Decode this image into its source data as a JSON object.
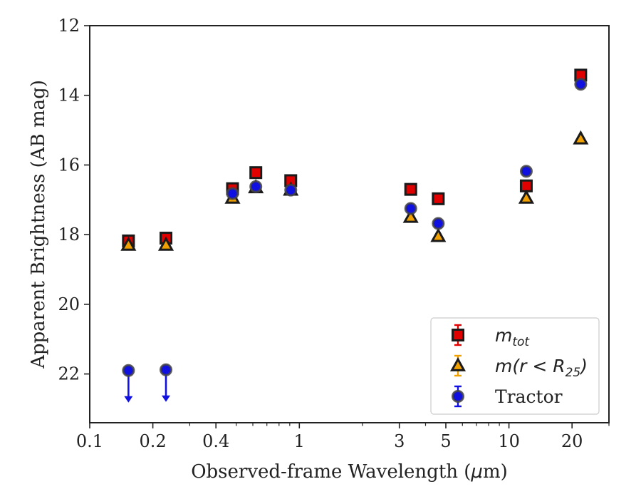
{
  "chart_data": {
    "type": "scatter",
    "xlabel_prefix": "Observed-frame Wavelength (",
    "xlabel_unit_mu": "μ",
    "xlabel_unit_rest": "m)",
    "ylabel": "Apparent Brightness (AB mag)",
    "x_scale": "log",
    "xlim": [
      0.1,
      30
    ],
    "ylim": [
      23.4,
      12
    ],
    "y_inverted": true,
    "grid": false,
    "legend_position": "lower-right",
    "x_ticks": [
      {
        "value": 0.1,
        "label": "0.1"
      },
      {
        "value": 0.2,
        "label": "0.2"
      },
      {
        "value": 0.4,
        "label": "0.4"
      },
      {
        "value": 1,
        "label": "1"
      },
      {
        "value": 3,
        "label": "3"
      },
      {
        "value": 5,
        "label": "5"
      },
      {
        "value": 10,
        "label": "10"
      },
      {
        "value": 20,
        "label": "20"
      }
    ],
    "y_ticks": [
      {
        "value": 12,
        "label": "12"
      },
      {
        "value": 14,
        "label": "14"
      },
      {
        "value": 16,
        "label": "16"
      },
      {
        "value": 18,
        "label": "18"
      },
      {
        "value": 20,
        "label": "20"
      },
      {
        "value": 22,
        "label": "22"
      }
    ],
    "series": [
      {
        "key": "mtot",
        "legend_main": "m",
        "legend_sub": "tot",
        "marker": "square",
        "color": "#e00000",
        "edge_color": "#1a1a1a",
        "errorbar_color": "#e00000",
        "points": [
          {
            "x": 0.153,
            "y": 18.18
          },
          {
            "x": 0.231,
            "y": 18.1
          },
          {
            "x": 0.48,
            "y": 16.68
          },
          {
            "x": 0.62,
            "y": 16.22
          },
          {
            "x": 0.91,
            "y": 16.45
          },
          {
            "x": 3.4,
            "y": 16.7
          },
          {
            "x": 4.6,
            "y": 16.97
          },
          {
            "x": 12.1,
            "y": 16.6
          },
          {
            "x": 22.0,
            "y": 13.42
          }
        ]
      },
      {
        "key": "mr25",
        "legend_main": "m(r < R",
        "legend_sub": "25",
        "legend_suffix": ")",
        "marker": "triangle",
        "color": "#f0a000",
        "edge_color": "#1a1a1a",
        "errorbar_color": "#f0a000",
        "points": [
          {
            "x": 0.153,
            "y": 18.3
          },
          {
            "x": 0.231,
            "y": 18.3
          },
          {
            "x": 0.48,
            "y": 16.95
          },
          {
            "x": 0.62,
            "y": 16.65
          },
          {
            "x": 0.91,
            "y": 16.72
          },
          {
            "x": 3.4,
            "y": 17.5
          },
          {
            "x": 4.6,
            "y": 18.05
          },
          {
            "x": 12.1,
            "y": 16.95
          },
          {
            "x": 22.0,
            "y": 15.25
          }
        ]
      },
      {
        "key": "tractor",
        "legend_main": "Tractor",
        "marker": "circle",
        "color": "#1010e0",
        "edge_color": "#444444",
        "errorbar_color": "#1010e0",
        "points": [
          {
            "x": 0.153,
            "y": 21.9,
            "upper_limit": true
          },
          {
            "x": 0.231,
            "y": 21.88,
            "upper_limit": true
          },
          {
            "x": 0.48,
            "y": 16.82
          },
          {
            "x": 0.62,
            "y": 16.62
          },
          {
            "x": 0.91,
            "y": 16.72
          },
          {
            "x": 3.4,
            "y": 17.25
          },
          {
            "x": 4.6,
            "y": 17.68
          },
          {
            "x": 12.1,
            "y": 16.18
          },
          {
            "x": 22.0,
            "y": 13.68
          }
        ]
      }
    ]
  }
}
